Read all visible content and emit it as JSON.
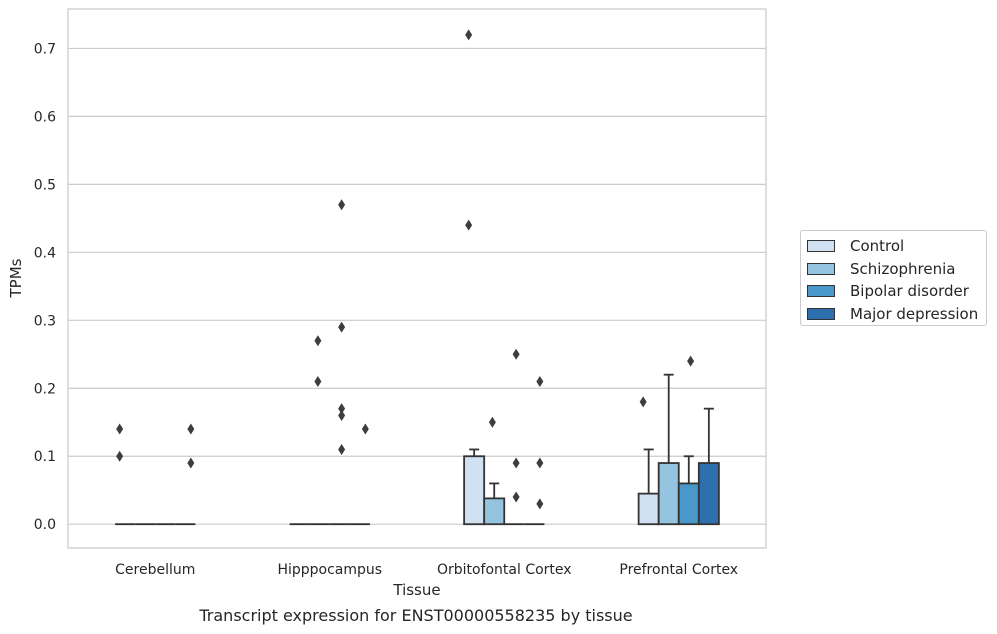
{
  "chart_data": {
    "type": "bar",
    "title": "",
    "caption": "Transcript expression for ENST00000558235 by tissue",
    "xlabel": "Tissue",
    "ylabel": "TPMs",
    "ylim": [
      -0.035,
      0.758
    ],
    "yticks": [
      "0.0",
      "0.1",
      "0.2",
      "0.3",
      "0.4",
      "0.5",
      "0.6",
      "0.7"
    ],
    "ytick_values": [
      0,
      0.1,
      0.2,
      0.3,
      0.4,
      0.5,
      0.6,
      0.7
    ],
    "grid": true,
    "legend_position": "right",
    "categories": [
      "Cerebellum",
      "Hipppocampus",
      "Orbitofontal Cortex",
      "Prefrontal Cortex"
    ],
    "series": [
      {
        "name": "Control",
        "color": "#d0e1f2",
        "values": [
          0,
          0,
          0.1,
          0.045
        ],
        "error_upper": [
          null,
          null,
          0.11,
          0.11
        ],
        "outliers": [
          [
            0.1,
            0.14
          ],
          [],
          [
            0.44,
            0.72
          ],
          [
            0.18
          ]
        ]
      },
      {
        "name": "Schizophrenia",
        "color": "#94c4df",
        "values": [
          0,
          0,
          0.038,
          0.09
        ],
        "error_upper": [
          null,
          null,
          0.06,
          0.22
        ],
        "outliers": [
          [],
          [
            0.21,
            0.27
          ],
          [
            0.15
          ],
          []
        ]
      },
      {
        "name": "Bipolar disorder",
        "color": "#4a98c9",
        "values": [
          0,
          0,
          0,
          0.06
        ],
        "error_upper": [
          null,
          null,
          null,
          0.1
        ],
        "outliers": [
          [],
          [
            0.11,
            0.16,
            0.17,
            0.29,
            0.47
          ],
          [
            0.04,
            0.09,
            0.25
          ],
          [
            0.24
          ]
        ]
      },
      {
        "name": "Major depression",
        "color": "#2e6fae",
        "values": [
          0,
          0,
          0,
          0.09
        ],
        "error_upper": [
          null,
          null,
          null,
          0.17
        ],
        "outliers": [
          [
            0.09,
            0.14
          ],
          [
            0.14
          ],
          [
            0.03,
            0.09,
            0.21
          ],
          []
        ]
      }
    ]
  }
}
